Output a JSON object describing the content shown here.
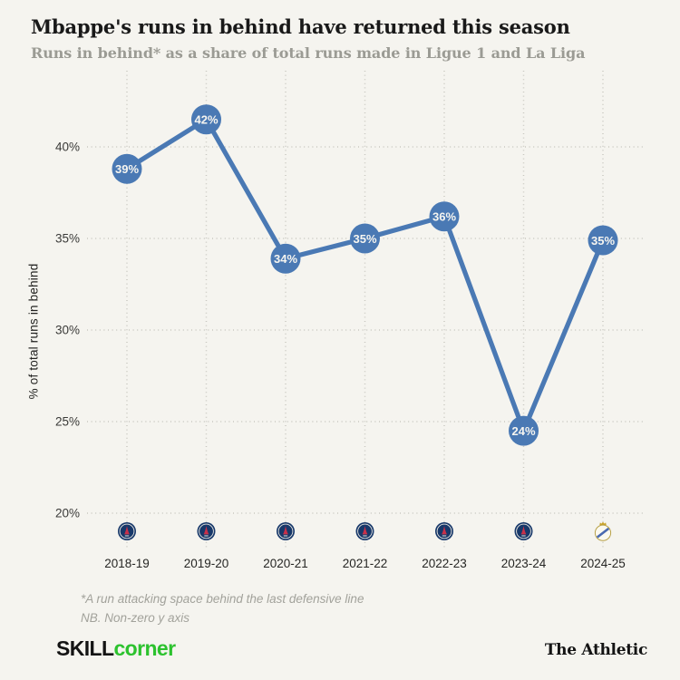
{
  "page": {
    "title": "Mbappe's runs in behind have returned this season",
    "subtitle": "Runs in behind* as a share of total runs made in Ligue 1 and La Liga",
    "background_color": "#f5f4ef"
  },
  "chart_data": {
    "type": "line",
    "title": "Mbappe's runs in behind have returned this season",
    "subtitle": "Runs in behind* as a share of total runs made in Ligue 1 and La Liga",
    "categories": [
      "2018-19",
      "2019-20",
      "2020-21",
      "2021-22",
      "2022-23",
      "2023-24",
      "2024-25"
    ],
    "values": [
      39,
      42,
      34,
      35,
      36,
      24,
      35
    ],
    "plot_values": [
      38.8,
      41.5,
      33.9,
      35.0,
      36.2,
      24.5,
      34.9
    ],
    "point_labels": [
      "39%",
      "42%",
      "34%",
      "35%",
      "36%",
      "24%",
      "35%"
    ],
    "badges": [
      "psg",
      "psg",
      "psg",
      "psg",
      "psg",
      "psg",
      "real-madrid"
    ],
    "badge_names": [
      "Paris Saint-Germain",
      "Paris Saint-Germain",
      "Paris Saint-Germain",
      "Paris Saint-Germain",
      "Paris Saint-Germain",
      "Paris Saint-Germain",
      "Real Madrid"
    ],
    "xlabel": "",
    "ylabel": "% of total runs in behind",
    "yticks": [
      20,
      25,
      30,
      35,
      40
    ],
    "ytick_labels": [
      "20%",
      "25%",
      "30%",
      "35%",
      "40%"
    ],
    "ylim": [
      19,
      43
    ],
    "grid": "dotted",
    "legend": "none",
    "line_color": "#4a79b4",
    "marker_color": "#4a79b4",
    "marker_text_color": "#f6f5f0",
    "gridline_color": "#c9c8c1"
  },
  "footnotes": [
    "*A run attacking space behind the last defensive line",
    "NB. Non-zero y axis"
  ],
  "footer": {
    "skillcorner_black": "SKILL",
    "skillcorner_green": "corner",
    "right_brand": "The Athletic"
  }
}
